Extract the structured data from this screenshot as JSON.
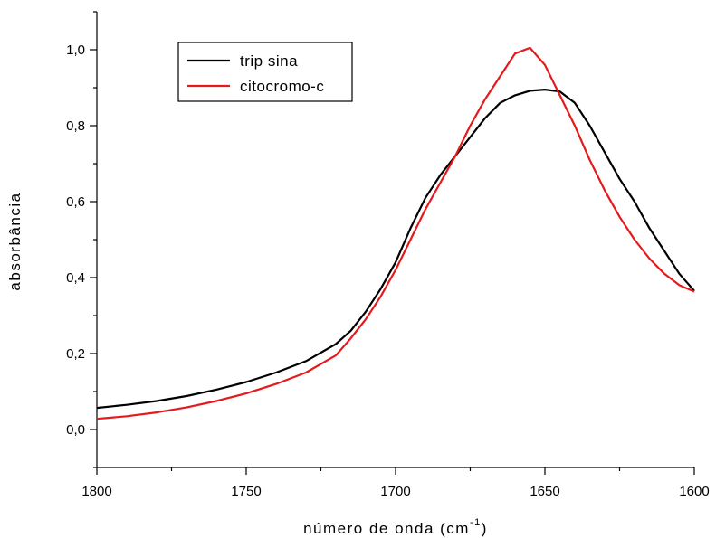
{
  "chart_data": {
    "type": "line",
    "title": "",
    "xlabel": "número de onda (cm",
    "xlabel_sup": "-1",
    "xlabel_end": ")",
    "ylabel": "absorbância",
    "xlim": [
      1800,
      1600
    ],
    "ylim": [
      -0.1,
      1.1
    ],
    "x_ticks": [
      1800,
      1750,
      1700,
      1650,
      1600
    ],
    "x_tick_labels": [
      "1800",
      "1750",
      "1700",
      "1650",
      "1600"
    ],
    "y_ticks": [
      0.0,
      0.2,
      0.4,
      0.6,
      0.8,
      1.0
    ],
    "y_tick_labels": [
      "0,0",
      "0,2",
      "0,4",
      "0,6",
      "0,8",
      "1,0"
    ],
    "grid": false,
    "legend_position": "top-left",
    "series": [
      {
        "name": "trip sina",
        "color": "#000000",
        "x": [
          1800,
          1790,
          1780,
          1770,
          1760,
          1750,
          1740,
          1730,
          1720,
          1715,
          1710,
          1705,
          1700,
          1695,
          1690,
          1685,
          1680,
          1675,
          1670,
          1665,
          1660,
          1655,
          1650,
          1645,
          1640,
          1635,
          1630,
          1625,
          1620,
          1615,
          1610,
          1605,
          1600
        ],
        "y": [
          0.057,
          0.065,
          0.075,
          0.088,
          0.105,
          0.125,
          0.15,
          0.18,
          0.225,
          0.26,
          0.31,
          0.37,
          0.44,
          0.53,
          0.61,
          0.67,
          0.72,
          0.77,
          0.82,
          0.86,
          0.88,
          0.892,
          0.895,
          0.89,
          0.86,
          0.8,
          0.73,
          0.66,
          0.6,
          0.53,
          0.47,
          0.41,
          0.365
        ]
      },
      {
        "name": "citocromo-c",
        "color": "#e41a1c",
        "x": [
          1800,
          1790,
          1780,
          1770,
          1760,
          1750,
          1740,
          1730,
          1720,
          1715,
          1710,
          1705,
          1700,
          1695,
          1690,
          1685,
          1680,
          1675,
          1670,
          1665,
          1660,
          1655,
          1650,
          1645,
          1640,
          1635,
          1630,
          1625,
          1620,
          1615,
          1610,
          1605,
          1600
        ],
        "y": [
          0.028,
          0.035,
          0.045,
          0.058,
          0.075,
          0.095,
          0.12,
          0.15,
          0.195,
          0.24,
          0.29,
          0.35,
          0.42,
          0.5,
          0.58,
          0.65,
          0.72,
          0.8,
          0.87,
          0.93,
          0.99,
          1.005,
          0.96,
          0.88,
          0.8,
          0.71,
          0.63,
          0.56,
          0.5,
          0.45,
          0.41,
          0.38,
          0.363
        ]
      }
    ]
  }
}
